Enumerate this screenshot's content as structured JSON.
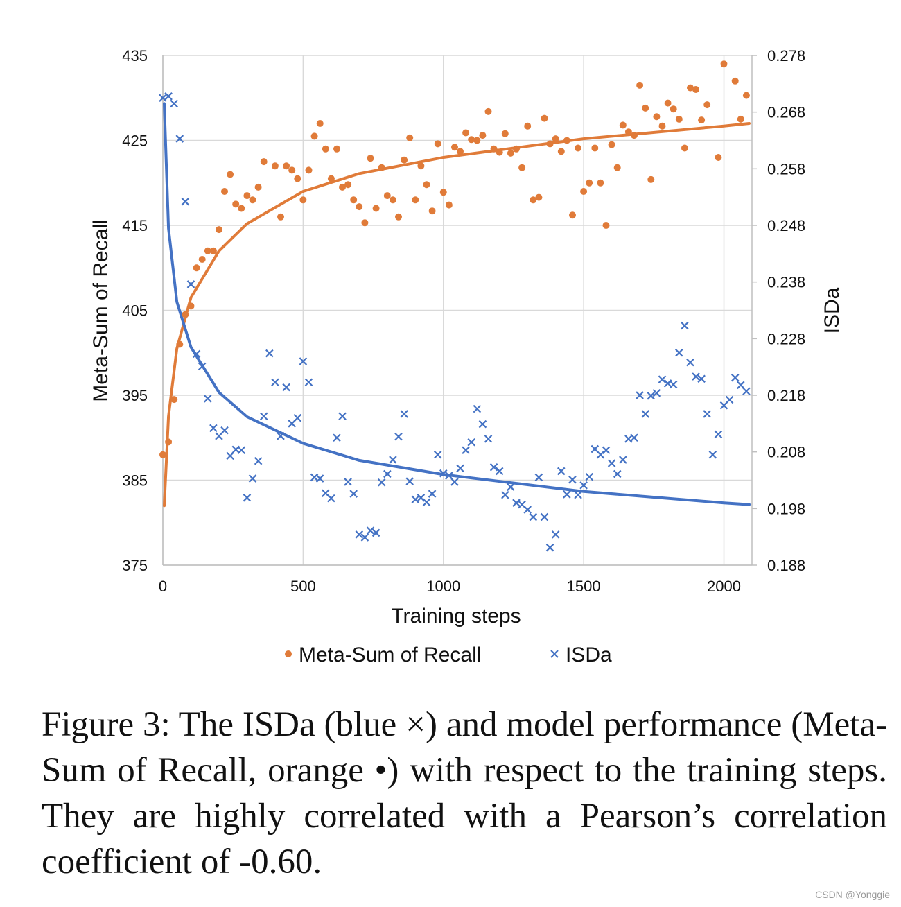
{
  "chart_data": {
    "type": "scatter",
    "xlabel": "Training steps",
    "ylabel": "Meta-Sum of Recall",
    "y2label": "ISDa",
    "xlim": [
      0,
      2100
    ],
    "ylim": [
      375,
      435
    ],
    "y2lim": [
      0.188,
      0.278
    ],
    "x_ticks": [
      0,
      500,
      1000,
      1500,
      2000
    ],
    "y_ticks": [
      375,
      385,
      395,
      405,
      415,
      425,
      435
    ],
    "y2_ticks": [
      "0.188",
      "0.198",
      "0.208",
      "0.218",
      "0.228",
      "0.238",
      "0.248",
      "0.258",
      "0.268",
      "0.278"
    ],
    "grid": "vertical-and-horizontal",
    "legend_position": "bottom",
    "series": [
      {
        "name": "Meta-Sum of Recall",
        "axis": "left",
        "marker": "circle",
        "color": "#E07B39",
        "points": [
          [
            0,
            388
          ],
          [
            20,
            389.5
          ],
          [
            40,
            394.5
          ],
          [
            60,
            401
          ],
          [
            80,
            404.5
          ],
          [
            100,
            405.5
          ],
          [
            120,
            410
          ],
          [
            140,
            411
          ],
          [
            160,
            412
          ],
          [
            180,
            412
          ],
          [
            200,
            414.5
          ],
          [
            220,
            419
          ],
          [
            240,
            421
          ],
          [
            260,
            417.5
          ],
          [
            280,
            417
          ],
          [
            300,
            418.5
          ],
          [
            320,
            418
          ],
          [
            340,
            419.5
          ],
          [
            360,
            422.5
          ],
          [
            400,
            422
          ],
          [
            420,
            416
          ],
          [
            440,
            422
          ],
          [
            460,
            421.5
          ],
          [
            480,
            420.5
          ],
          [
            500,
            418
          ],
          [
            520,
            421.5
          ],
          [
            540,
            425.5
          ],
          [
            560,
            427
          ],
          [
            580,
            424
          ],
          [
            600,
            420.5
          ],
          [
            620,
            424
          ],
          [
            640,
            419.5
          ],
          [
            660,
            419.8
          ],
          [
            680,
            418
          ],
          [
            700,
            417.2
          ],
          [
            720,
            415.3
          ],
          [
            740,
            422.9
          ],
          [
            760,
            417
          ],
          [
            780,
            421.8
          ],
          [
            800,
            418.5
          ],
          [
            820,
            418
          ],
          [
            840,
            416
          ],
          [
            860,
            422.7
          ],
          [
            880,
            425.3
          ],
          [
            900,
            418
          ],
          [
            920,
            422
          ],
          [
            940,
            419.8
          ],
          [
            960,
            416.7
          ],
          [
            980,
            424.6
          ],
          [
            1000,
            418.9
          ],
          [
            1020,
            417.4
          ],
          [
            1040,
            424.2
          ],
          [
            1060,
            423.7
          ],
          [
            1080,
            425.9
          ],
          [
            1100,
            425.1
          ],
          [
            1120,
            425
          ],
          [
            1140,
            425.6
          ],
          [
            1160,
            428.4
          ],
          [
            1180,
            424
          ],
          [
            1200,
            423.6
          ],
          [
            1220,
            425.8
          ],
          [
            1240,
            423.5
          ],
          [
            1260,
            424
          ],
          [
            1280,
            421.8
          ],
          [
            1300,
            426.7
          ],
          [
            1320,
            418
          ],
          [
            1340,
            418.3
          ],
          [
            1360,
            427.6
          ],
          [
            1380,
            424.6
          ],
          [
            1400,
            425.2
          ],
          [
            1420,
            423.7
          ],
          [
            1440,
            425
          ],
          [
            1460,
            416.2
          ],
          [
            1480,
            424.1
          ],
          [
            1500,
            419
          ],
          [
            1520,
            420
          ],
          [
            1540,
            424.1
          ],
          [
            1560,
            420
          ],
          [
            1580,
            415
          ],
          [
            1600,
            424.5
          ],
          [
            1620,
            421.8
          ],
          [
            1640,
            426.8
          ],
          [
            1660,
            426
          ],
          [
            1680,
            425.6
          ],
          [
            1700,
            431.5
          ],
          [
            1720,
            428.8
          ],
          [
            1740,
            420.4
          ],
          [
            1760,
            427.8
          ],
          [
            1780,
            426.7
          ],
          [
            1800,
            429.4
          ],
          [
            1820,
            428.7
          ],
          [
            1840,
            427.5
          ],
          [
            1860,
            424.1
          ],
          [
            1880,
            431.2
          ],
          [
            1900,
            431
          ],
          [
            1920,
            427.4
          ],
          [
            1940,
            429.2
          ],
          [
            1980,
            423
          ],
          [
            2000,
            434
          ],
          [
            2040,
            432
          ],
          [
            2060,
            427.5
          ],
          [
            2080,
            430.3
          ]
        ]
      },
      {
        "name": "ISDa",
        "axis": "right",
        "marker": "cross",
        "color": "#4472C4",
        "points": [
          [
            0,
            0.2705
          ],
          [
            20,
            0.2708
          ],
          [
            40,
            0.2695
          ],
          [
            60,
            0.2633
          ],
          [
            80,
            0.2522
          ],
          [
            100,
            0.2376
          ],
          [
            120,
            0.2253
          ],
          [
            140,
            0.2231
          ],
          [
            160,
            0.2174
          ],
          [
            180,
            0.2122
          ],
          [
            200,
            0.2108
          ],
          [
            220,
            0.2118
          ],
          [
            240,
            0.2073
          ],
          [
            260,
            0.2084
          ],
          [
            280,
            0.2083
          ],
          [
            300,
            0.1999
          ],
          [
            320,
            0.2033
          ],
          [
            340,
            0.2064
          ],
          [
            360,
            0.2143
          ],
          [
            380,
            0.2254
          ],
          [
            400,
            0.2203
          ],
          [
            420,
            0.2108
          ],
          [
            440,
            0.2194
          ],
          [
            460,
            0.213
          ],
          [
            480,
            0.214
          ],
          [
            500,
            0.224
          ],
          [
            520,
            0.2203
          ],
          [
            540,
            0.2035
          ],
          [
            560,
            0.2033
          ],
          [
            580,
            0.2007
          ],
          [
            600,
            0.1998
          ],
          [
            620,
            0.2105
          ],
          [
            640,
            0.2143
          ],
          [
            660,
            0.2027
          ],
          [
            680,
            0.2006
          ],
          [
            700,
            0.1934
          ],
          [
            720,
            0.1929
          ],
          [
            740,
            0.1941
          ],
          [
            760,
            0.1937
          ],
          [
            780,
            0.2026
          ],
          [
            800,
            0.2041
          ],
          [
            820,
            0.2066
          ],
          [
            840,
            0.2107
          ],
          [
            860,
            0.2147
          ],
          [
            880,
            0.2028
          ],
          [
            900,
            0.1996
          ],
          [
            920,
            0.1999
          ],
          [
            940,
            0.1991
          ],
          [
            960,
            0.2006
          ],
          [
            980,
            0.2075
          ],
          [
            1000,
            0.2042
          ],
          [
            1020,
            0.2038
          ],
          [
            1040,
            0.2027
          ],
          [
            1060,
            0.2051
          ],
          [
            1080,
            0.2083
          ],
          [
            1100,
            0.2097
          ],
          [
            1120,
            0.2156
          ],
          [
            1140,
            0.2129
          ],
          [
            1160,
            0.2103
          ],
          [
            1180,
            0.2053
          ],
          [
            1200,
            0.2046
          ],
          [
            1220,
            0.2004
          ],
          [
            1240,
            0.2018
          ],
          [
            1260,
            0.199
          ],
          [
            1280,
            0.1987
          ],
          [
            1300,
            0.1978
          ],
          [
            1320,
            0.1965
          ],
          [
            1340,
            0.2035
          ],
          [
            1360,
            0.1965
          ],
          [
            1380,
            0.1911
          ],
          [
            1400,
            0.1934
          ],
          [
            1420,
            0.2046
          ],
          [
            1440,
            0.2005
          ],
          [
            1460,
            0.2031
          ],
          [
            1480,
            0.2004
          ],
          [
            1500,
            0.2021
          ],
          [
            1520,
            0.2036
          ],
          [
            1540,
            0.2085
          ],
          [
            1560,
            0.2075
          ],
          [
            1580,
            0.2083
          ],
          [
            1600,
            0.206
          ],
          [
            1620,
            0.2041
          ],
          [
            1640,
            0.2066
          ],
          [
            1660,
            0.2103
          ],
          [
            1680,
            0.2105
          ],
          [
            1700,
            0.218
          ],
          [
            1720,
            0.2147
          ],
          [
            1740,
            0.2179
          ],
          [
            1760,
            0.2184
          ],
          [
            1780,
            0.2208
          ],
          [
            1800,
            0.2201
          ],
          [
            1820,
            0.2199
          ],
          [
            1840,
            0.2255
          ],
          [
            1860,
            0.2303
          ],
          [
            1880,
            0.2238
          ],
          [
            1900,
            0.2213
          ],
          [
            1920,
            0.2209
          ],
          [
            1940,
            0.2147
          ],
          [
            1960,
            0.2075
          ],
          [
            1980,
            0.2111
          ],
          [
            2000,
            0.2162
          ],
          [
            2020,
            0.2172
          ],
          [
            2040,
            0.2211
          ],
          [
            2060,
            0.2198
          ],
          [
            2080,
            0.2187
          ]
        ]
      }
    ],
    "trendlines": [
      {
        "series": "Meta-Sum of Recall",
        "kind": "logarithmic",
        "color": "#E07B39",
        "points": [
          [
            5,
            382
          ],
          [
            20,
            392.5
          ],
          [
            50,
            400.5
          ],
          [
            100,
            406.5
          ],
          [
            200,
            412
          ],
          [
            300,
            415.2
          ],
          [
            500,
            419
          ],
          [
            700,
            421.1
          ],
          [
            1000,
            423
          ],
          [
            1500,
            425.2
          ],
          [
            2000,
            426.7
          ],
          [
            2090,
            427
          ]
        ]
      },
      {
        "series": "ISDa",
        "kind": "logarithmic",
        "color": "#4472C4",
        "points": [
          [
            5,
            0.2695
          ],
          [
            20,
            0.2475
          ],
          [
            50,
            0.2345
          ],
          [
            100,
            0.2265
          ],
          [
            200,
            0.2185
          ],
          [
            300,
            0.2142
          ],
          [
            500,
            0.2095
          ],
          [
            700,
            0.2065
          ],
          [
            1000,
            0.204
          ],
          [
            1500,
            0.201
          ],
          [
            2000,
            0.199
          ],
          [
            2090,
            0.1987
          ]
        ]
      }
    ]
  },
  "caption": "Figure 3: The ISDa (blue ×) and model performance (Meta-Sum of Recall, orange •) with respect to the training steps. They are highly correlated with a Pearson’s correlation coefficient of -0.60.",
  "watermark": "CSDN @Yonggie"
}
